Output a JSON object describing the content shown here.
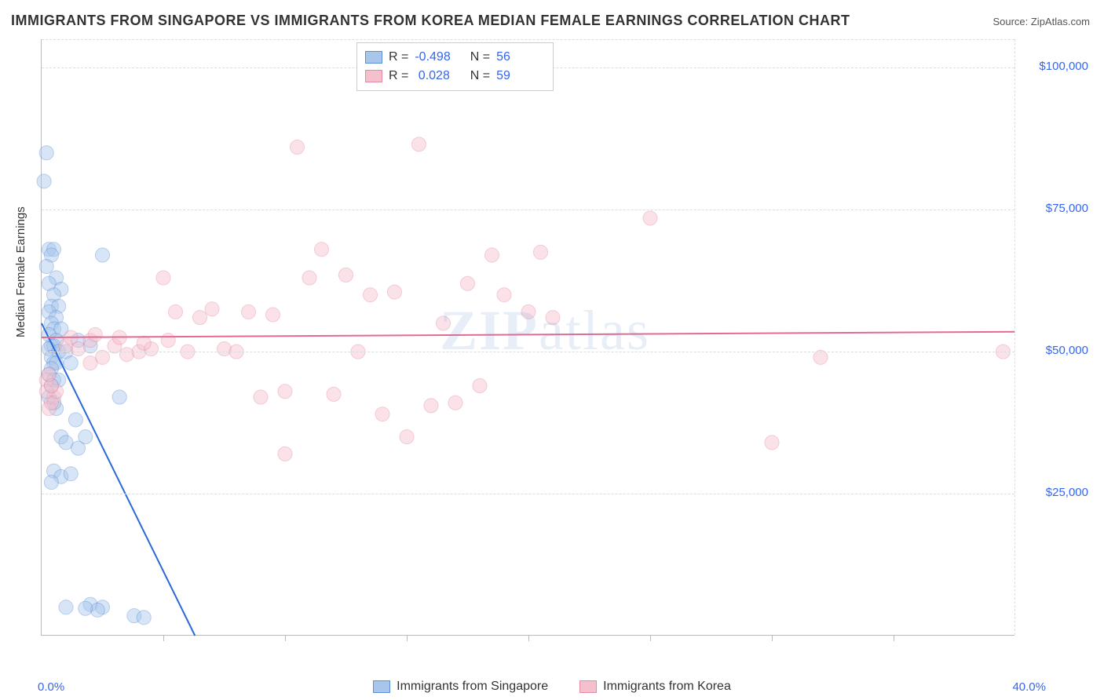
{
  "title": "IMMIGRANTS FROM SINGAPORE VS IMMIGRANTS FROM KOREA MEDIAN FEMALE EARNINGS CORRELATION CHART",
  "source_label": "Source: ZipAtlas.com",
  "ylabel": "Median Female Earnings",
  "watermark_zip": "ZIP",
  "watermark_atlas": "atlas",
  "chart": {
    "type": "scatter",
    "background_color": "#ffffff",
    "grid_color": "#dddddd",
    "axis_color": "#bbbbbb",
    "tick_label_color": "#3366ee",
    "xlim": [
      0,
      40
    ],
    "ylim": [
      0,
      105000
    ],
    "x_range_labels": [
      "0.0%",
      "40.0%"
    ],
    "y_ticks": [
      25000,
      50000,
      75000,
      100000
    ],
    "y_tick_labels": [
      "$25,000",
      "$50,000",
      "$75,000",
      "$100,000"
    ],
    "x_minor_tick_step": 5,
    "marker_radius": 9,
    "marker_opacity": 0.45,
    "line_width": 2,
    "series": [
      {
        "name": "Immigrants from Singapore",
        "color_fill": "#a8c6ec",
        "color_stroke": "#5b8fd6",
        "line_color": "#2b68d8",
        "R": "-0.498",
        "N": "56",
        "trend": {
          "x1": 0,
          "y1": 55000,
          "x2": 6.3,
          "y2": 0
        },
        "points": [
          [
            0.2,
            85000
          ],
          [
            0.1,
            80000
          ],
          [
            0.3,
            68000
          ],
          [
            0.5,
            68000
          ],
          [
            0.4,
            67000
          ],
          [
            0.2,
            65000
          ],
          [
            0.6,
            63000
          ],
          [
            0.3,
            62000
          ],
          [
            0.8,
            61000
          ],
          [
            0.5,
            60000
          ],
          [
            0.4,
            58000
          ],
          [
            0.7,
            58000
          ],
          [
            0.3,
            57000
          ],
          [
            0.6,
            56000
          ],
          [
            0.4,
            55000
          ],
          [
            0.5,
            54000
          ],
          [
            0.8,
            54000
          ],
          [
            0.3,
            53000
          ],
          [
            0.6,
            52000
          ],
          [
            0.4,
            51000
          ],
          [
            0.5,
            51000
          ],
          [
            0.3,
            50500
          ],
          [
            0.7,
            50000
          ],
          [
            0.4,
            49000
          ],
          [
            0.5,
            48000
          ],
          [
            0.6,
            48000
          ],
          [
            0.4,
            47000
          ],
          [
            0.3,
            46000
          ],
          [
            0.5,
            45000
          ],
          [
            0.7,
            45000
          ],
          [
            0.4,
            44000
          ],
          [
            1.0,
            50000
          ],
          [
            1.5,
            52000
          ],
          [
            2.5,
            67000
          ],
          [
            2.0,
            51000
          ],
          [
            1.2,
            48000
          ],
          [
            3.2,
            42000
          ],
          [
            0.6,
            40000
          ],
          [
            1.4,
            38000
          ],
          [
            1.8,
            35000
          ],
          [
            0.8,
            35000
          ],
          [
            1.0,
            34000
          ],
          [
            1.5,
            33000
          ],
          [
            0.5,
            29000
          ],
          [
            0.8,
            28000
          ],
          [
            1.2,
            28500
          ],
          [
            0.4,
            27000
          ],
          [
            1.0,
            5000
          ],
          [
            2.0,
            5500
          ],
          [
            2.5,
            5000
          ],
          [
            2.3,
            4500
          ],
          [
            1.8,
            4800
          ],
          [
            3.8,
            3500
          ],
          [
            4.2,
            3200
          ],
          [
            0.3,
            42000
          ],
          [
            0.5,
            41000
          ]
        ]
      },
      {
        "name": "Immigrants from Korea",
        "color_fill": "#f4c0cd",
        "color_stroke": "#e48aa4",
        "line_color": "#e36b93",
        "R": "0.028",
        "N": "59",
        "trend": {
          "x1": 0,
          "y1": 52500,
          "x2": 40,
          "y2": 53500
        },
        "points": [
          [
            0.2,
            45000
          ],
          [
            0.3,
            40000
          ],
          [
            0.5,
            42000
          ],
          [
            0.4,
            41000
          ],
          [
            0.6,
            43000
          ],
          [
            1.0,
            51000
          ],
          [
            1.5,
            50500
          ],
          [
            2.0,
            52000
          ],
          [
            2.5,
            49000
          ],
          [
            3.0,
            51000
          ],
          [
            2.0,
            48000
          ],
          [
            3.5,
            49500
          ],
          [
            4.0,
            50000
          ],
          [
            4.5,
            50500
          ],
          [
            5.0,
            63000
          ],
          [
            5.5,
            57000
          ],
          [
            6.0,
            50000
          ],
          [
            6.5,
            56000
          ],
          [
            7.0,
            57500
          ],
          [
            7.5,
            50500
          ],
          [
            8.0,
            50000
          ],
          [
            8.5,
            57000
          ],
          [
            9.0,
            42000
          ],
          [
            9.5,
            56500
          ],
          [
            10.0,
            43000
          ],
          [
            10.5,
            86000
          ],
          [
            10.0,
            32000
          ],
          [
            11.0,
            63000
          ],
          [
            11.5,
            68000
          ],
          [
            12.0,
            42500
          ],
          [
            12.5,
            63500
          ],
          [
            13.0,
            50000
          ],
          [
            13.5,
            60000
          ],
          [
            14.0,
            39000
          ],
          [
            14.5,
            60500
          ],
          [
            15.0,
            35000
          ],
          [
            15.5,
            86500
          ],
          [
            16.0,
            40500
          ],
          [
            16.5,
            55000
          ],
          [
            17.0,
            41000
          ],
          [
            17.5,
            62000
          ],
          [
            18.0,
            44000
          ],
          [
            18.5,
            67000
          ],
          [
            19.0,
            60000
          ],
          [
            20.0,
            57000
          ],
          [
            20.5,
            67500
          ],
          [
            21.0,
            56000
          ],
          [
            25.0,
            73500
          ],
          [
            30.0,
            34000
          ],
          [
            32.0,
            49000
          ],
          [
            39.5,
            50000
          ],
          [
            0.2,
            43000
          ],
          [
            0.4,
            44000
          ],
          [
            0.3,
            46000
          ],
          [
            1.2,
            52500
          ],
          [
            2.2,
            53000
          ],
          [
            3.2,
            52500
          ],
          [
            4.2,
            51500
          ],
          [
            5.2,
            52000
          ]
        ]
      }
    ]
  },
  "legend": {
    "series1_label": "Immigrants from Singapore",
    "series2_label": "Immigrants from Korea"
  }
}
